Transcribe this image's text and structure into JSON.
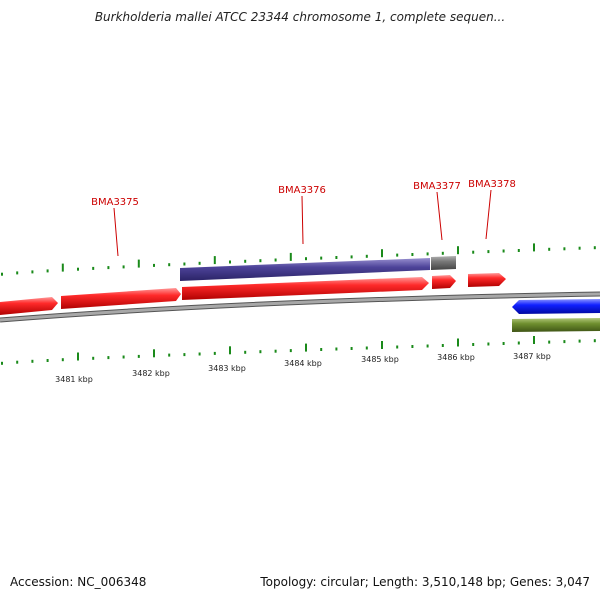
{
  "title": "Burkholderia mallei ATCC 23344 chromosome 1, complete sequen...",
  "footer": {
    "accession": "Accession: NC_006348",
    "summary": "Topology: circular; Length: 3,510,148 bp; Genes: 3,047"
  },
  "genes": [
    {
      "label": "BMA3375"
    },
    {
      "label": "BMA3376"
    },
    {
      "label": "BMA3377"
    },
    {
      "label": "BMA3378"
    }
  ],
  "scale": {
    "ticks": [
      "3481 kbp",
      "3482 kbp",
      "3483 kbp",
      "3484 kbp",
      "3485 kbp",
      "3486 kbp",
      "3487 kbp"
    ]
  },
  "colors": {
    "gene_forward": "#e60000",
    "gene_reverse": "#0018e0",
    "cds_feature": "#4b4090",
    "misc_feature": "#707070",
    "green_feature": "#6b8a2e",
    "tick": "#1a8a1a",
    "backbone": "#8c8c8c",
    "label": "#cc0000"
  }
}
